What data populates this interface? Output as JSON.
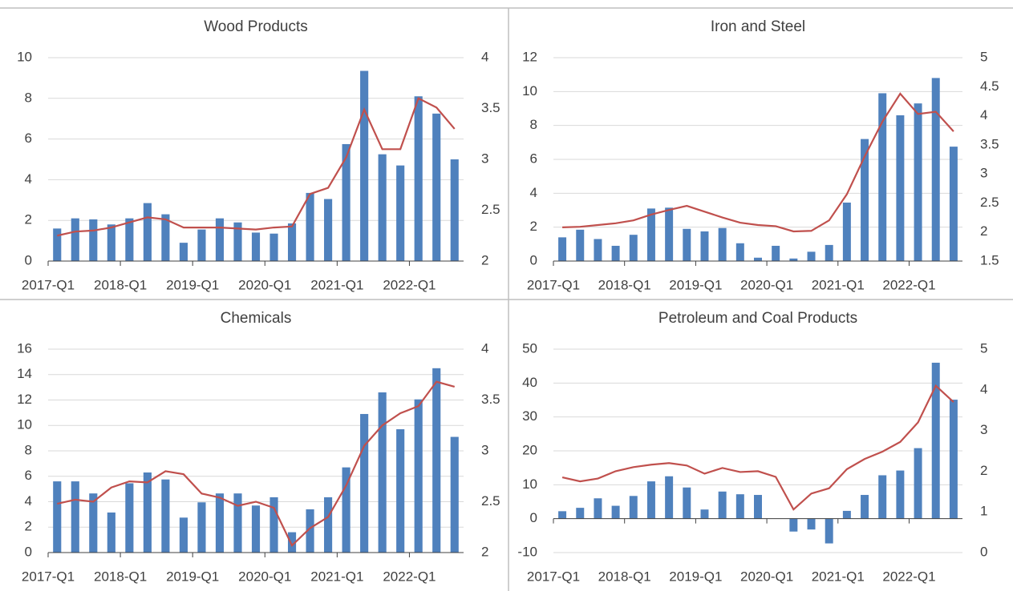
{
  "chart_data": [
    {
      "type": "combo",
      "title": "Wood Products",
      "categories": [
        "2017-Q1",
        null,
        null,
        null,
        "2018-Q1",
        null,
        null,
        null,
        "2019-Q1",
        null,
        null,
        null,
        "2020-Q1",
        null,
        null,
        null,
        "2021-Q1",
        null,
        null,
        null,
        "2022-Q1",
        null,
        null
      ],
      "series": [
        {
          "color": "#4f81bd",
          "values": [
            1.6,
            2.1,
            2.05,
            1.8,
            2.1,
            2.85,
            2.3,
            0.9,
            1.55,
            2.1,
            1.9,
            1.4,
            1.35,
            1.85,
            3.35,
            3.05,
            5.75,
            9.35,
            5.25,
            4.7,
            8.1,
            7.25,
            5.0
          ]
        },
        {
          "color": "#c0504d",
          "axis": "y2",
          "values": [
            2.25,
            2.29,
            2.3,
            2.33,
            2.38,
            2.43,
            2.41,
            2.33,
            2.33,
            2.33,
            2.32,
            2.31,
            2.33,
            2.34,
            2.66,
            2.72,
            3.02,
            3.49,
            3.1,
            3.1,
            3.6,
            3.51,
            3.3
          ]
        }
      ],
      "ylim": [
        0,
        10
      ],
      "yticks": [
        0,
        2,
        4,
        6,
        8,
        10
      ],
      "y2lim": [
        2,
        4
      ],
      "y2ticks": [
        2,
        2.5,
        3,
        3.5,
        4
      ],
      "grid": true
    },
    {
      "type": "combo",
      "title": "Iron and Steel",
      "categories": [
        "2017-Q1",
        null,
        null,
        null,
        "2018-Q1",
        null,
        null,
        null,
        "2019-Q1",
        null,
        null,
        null,
        "2020-Q1",
        null,
        null,
        null,
        "2021-Q1",
        null,
        null,
        null,
        "2022-Q1",
        null,
        null
      ],
      "series": [
        {
          "color": "#4f81bd",
          "values": [
            1.4,
            1.85,
            1.3,
            0.9,
            1.55,
            3.1,
            3.15,
            1.9,
            1.75,
            1.95,
            1.05,
            0.2,
            0.9,
            0.15,
            0.55,
            0.95,
            3.45,
            7.2,
            9.9,
            8.6,
            9.3,
            10.8,
            6.75
          ]
        },
        {
          "color": "#c0504d",
          "axis": "y2",
          "values": [
            2.08,
            2.09,
            2.12,
            2.15,
            2.2,
            2.3,
            2.38,
            2.45,
            2.35,
            2.25,
            2.16,
            2.12,
            2.1,
            2.01,
            2.02,
            2.2,
            2.65,
            3.3,
            3.9,
            4.38,
            4.03,
            4.07,
            3.73
          ]
        }
      ],
      "ylim": [
        0,
        12
      ],
      "yticks": [
        0,
        2,
        4,
        6,
        8,
        10,
        12
      ],
      "y2lim": [
        1.5,
        5
      ],
      "y2ticks": [
        1.5,
        2,
        2.5,
        3,
        3.5,
        4,
        4.5,
        5
      ],
      "grid": true
    },
    {
      "type": "combo",
      "title": "Chemicals",
      "categories": [
        "2017-Q1",
        null,
        null,
        null,
        "2018-Q1",
        null,
        null,
        null,
        "2019-Q1",
        null,
        null,
        null,
        "2020-Q1",
        null,
        null,
        null,
        "2021-Q1",
        null,
        null,
        null,
        "2022-Q1",
        null,
        null
      ],
      "series": [
        {
          "color": "#4f81bd",
          "values": [
            5.6,
            5.6,
            4.65,
            3.15,
            5.45,
            6.3,
            5.75,
            2.75,
            3.95,
            4.65,
            4.65,
            3.7,
            4.35,
            1.6,
            3.4,
            4.35,
            6.7,
            10.9,
            12.6,
            9.7,
            12.05,
            14.5,
            9.1
          ]
        },
        {
          "color": "#c0504d",
          "axis": "y2",
          "values": [
            2.48,
            2.52,
            2.5,
            2.64,
            2.7,
            2.69,
            2.8,
            2.77,
            2.58,
            2.54,
            2.46,
            2.5,
            2.44,
            2.07,
            2.24,
            2.35,
            2.66,
            3.05,
            3.25,
            3.37,
            3.44,
            3.68,
            3.63
          ]
        }
      ],
      "ylim": [
        0,
        16
      ],
      "yticks": [
        0,
        2,
        4,
        6,
        8,
        10,
        12,
        14,
        16
      ],
      "y2lim": [
        2,
        4
      ],
      "y2ticks": [
        2,
        2.5,
        3,
        3.5,
        4
      ],
      "grid": true
    },
    {
      "type": "combo",
      "title": "Petroleum and Coal Products",
      "categories": [
        "2017-Q1",
        null,
        null,
        null,
        "2018-Q1",
        null,
        null,
        null,
        "2019-Q1",
        null,
        null,
        null,
        "2020-Q1",
        null,
        null,
        null,
        "2021-Q1",
        null,
        null,
        null,
        "2022-Q1",
        null,
        null
      ],
      "series": [
        {
          "color": "#4f81bd",
          "values": [
            2.2,
            3.2,
            6,
            3.8,
            6.7,
            11,
            12.5,
            9.2,
            2.7,
            8,
            7.2,
            7,
            0,
            -3.8,
            -3.2,
            -7.3,
            2.3,
            7,
            12.8,
            14.2,
            20.8,
            46,
            35.1
          ]
        },
        {
          "color": "#c0504d",
          "axis": "y2",
          "values": [
            1.85,
            1.75,
            1.82,
            2.0,
            2.1,
            2.16,
            2.2,
            2.14,
            1.94,
            2.08,
            1.98,
            2.0,
            1.86,
            1.06,
            1.45,
            1.58,
            2.05,
            2.3,
            2.48,
            2.72,
            3.2,
            4.1,
            3.7
          ]
        }
      ],
      "ylim": [
        -10,
        50
      ],
      "yticks": [
        -10,
        0,
        10,
        20,
        30,
        40,
        50
      ],
      "y2lim": [
        0,
        5
      ],
      "y2ticks": [
        0,
        1,
        2,
        3,
        4,
        5
      ],
      "grid": true
    }
  ]
}
